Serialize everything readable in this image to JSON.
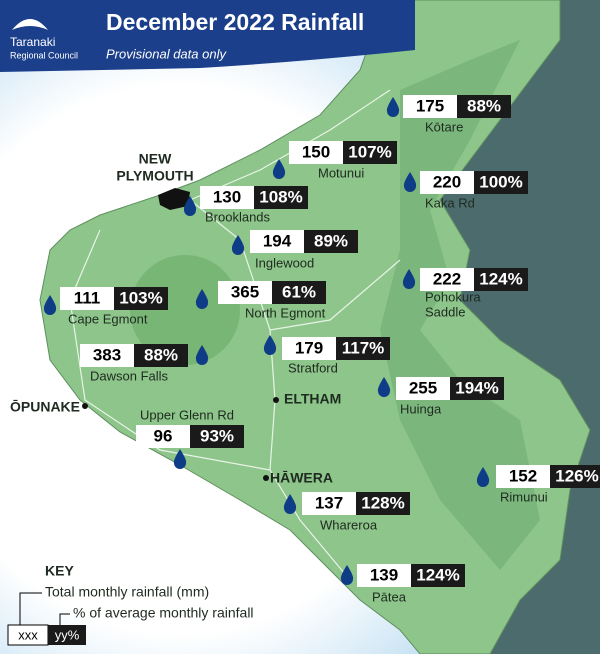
{
  "header": {
    "title": "December 2022 Rainfall",
    "subtitle": "Provisional data only",
    "logo_lines": [
      "Taranaki",
      "Regional Council"
    ]
  },
  "towns": [
    {
      "name": [
        "NEW",
        "PLYMOUTH"
      ]
    },
    {
      "name": [
        "ŌPUNAKE"
      ]
    },
    {
      "name": [
        "ELTHAM"
      ]
    },
    {
      "name": [
        "HĀWERA"
      ]
    }
  ],
  "stations": [
    {
      "name": [
        "Kōtare"
      ],
      "rainfall": 175,
      "percent": "88%"
    },
    {
      "name": [
        "Motunui"
      ],
      "rainfall": 150,
      "percent": "107%"
    },
    {
      "name": [
        "Kaka Rd"
      ],
      "rainfall": 220,
      "percent": "100%"
    },
    {
      "name": [
        "Brooklands"
      ],
      "rainfall": 130,
      "percent": "108%"
    },
    {
      "name": [
        "Inglewood"
      ],
      "rainfall": 194,
      "percent": "89%"
    },
    {
      "name": [
        "Pohokura",
        "Saddle"
      ],
      "rainfall": 222,
      "percent": "124%"
    },
    {
      "name": [
        "Cape Egmont"
      ],
      "rainfall": 111,
      "percent": "103%"
    },
    {
      "name": [
        "North Egmont"
      ],
      "rainfall": 365,
      "percent": "61%"
    },
    {
      "name": [
        "Stratford"
      ],
      "rainfall": 179,
      "percent": "117%"
    },
    {
      "name": [
        "Dawson Falls"
      ],
      "rainfall": 383,
      "percent": "88%"
    },
    {
      "name": [
        "Huinga"
      ],
      "rainfall": 255,
      "percent": "194%"
    },
    {
      "name": [
        "Upper Glenn Rd"
      ],
      "rainfall": 96,
      "percent": "93%"
    },
    {
      "name": [
        "Rimunui"
      ],
      "rainfall": 152,
      "percent": "126%"
    },
    {
      "name": [
        "Whareroa"
      ],
      "rainfall": 137,
      "percent": "128%"
    },
    {
      "name": [
        "Pātea"
      ],
      "rainfall": 139,
      "percent": "124%"
    }
  ],
  "key": {
    "title": "KEY",
    "rainfall_text": "Total monthly rainfall (mm)",
    "percent_text": "% of average monthly rainfall",
    "rainfall_sample": "xxx",
    "percent_sample": "yy%"
  }
}
